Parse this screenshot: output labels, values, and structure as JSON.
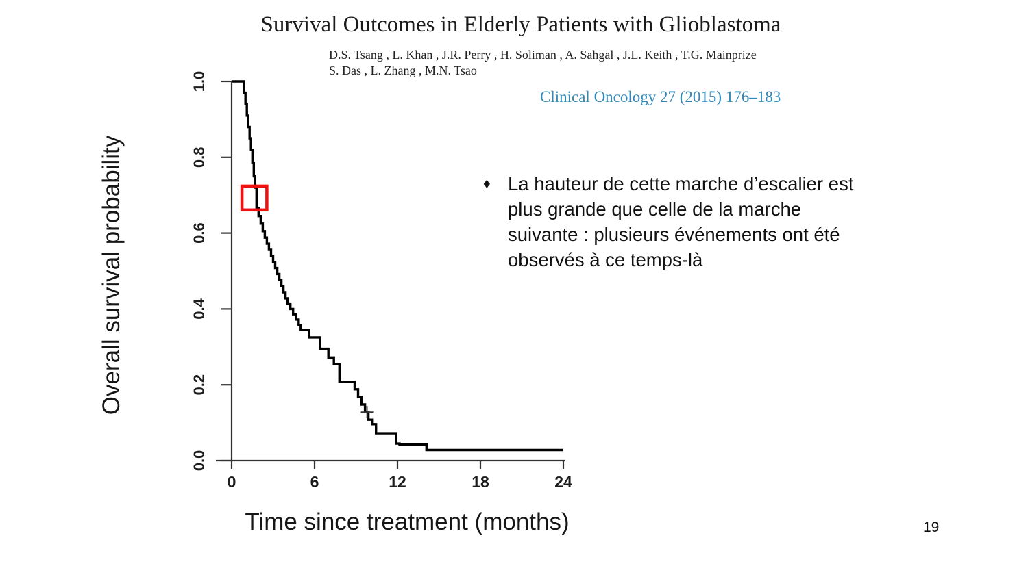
{
  "slide": {
    "title": "Survival Outcomes in Elderly Patients with Glioblastoma",
    "authors_line1": "D.S. Tsang , L. Khan , J.R. Perry , H. Soliman , A. Sahgal , J.L. Keith , T.G. Mainprize",
    "authors_line2": "S. Das , L. Zhang , M.N. Tsao",
    "citation": "Clinical Oncology 27 (2015) 176–183",
    "citation_color": "#3189b8",
    "bullet_marker": "♦",
    "bullet_text": "La hauteur de cette marche d’escalier est plus grande que celle de la marche suivante : plusieurs événements ont été observés à ce temps-là",
    "page_number": "19"
  },
  "chart_data": {
    "type": "line",
    "subtype": "kaplan-meier-step",
    "title": "",
    "xlabel": "Time since treatment (months)",
    "ylabel": "Overall survival probability",
    "xlim": [
      0,
      24
    ],
    "ylim": [
      0,
      1
    ],
    "xticks": [
      0,
      6,
      12,
      18,
      24
    ],
    "yticks": [
      0.0,
      0.2,
      0.4,
      0.6,
      0.8,
      1.0
    ],
    "grid": false,
    "legend": "none",
    "curve_color": "#000000",
    "axis_color": "#333333",
    "points": [
      [
        0,
        1.0
      ],
      [
        0.9,
        0.97
      ],
      [
        1.0,
        0.94
      ],
      [
        1.1,
        0.91
      ],
      [
        1.2,
        0.88
      ],
      [
        1.3,
        0.85
      ],
      [
        1.4,
        0.82
      ],
      [
        1.5,
        0.785
      ],
      [
        1.6,
        0.75
      ],
      [
        1.7,
        0.72
      ],
      [
        1.8,
        0.665
      ],
      [
        1.95,
        0.645
      ],
      [
        2.1,
        0.625
      ],
      [
        2.25,
        0.605
      ],
      [
        2.4,
        0.588
      ],
      [
        2.55,
        0.572
      ],
      [
        2.7,
        0.556
      ],
      [
        2.85,
        0.54
      ],
      [
        3.0,
        0.524
      ],
      [
        3.15,
        0.508
      ],
      [
        3.3,
        0.492
      ],
      [
        3.45,
        0.476
      ],
      [
        3.6,
        0.46
      ],
      [
        3.75,
        0.444
      ],
      [
        3.9,
        0.428
      ],
      [
        4.05,
        0.414
      ],
      [
        4.25,
        0.4
      ],
      [
        4.45,
        0.386
      ],
      [
        4.65,
        0.372
      ],
      [
        4.85,
        0.358
      ],
      [
        5.0,
        0.345
      ],
      [
        5.6,
        0.325
      ],
      [
        6.4,
        0.295
      ],
      [
        7.0,
        0.272
      ],
      [
        7.4,
        0.254
      ],
      [
        7.8,
        0.208
      ],
      [
        8.9,
        0.188
      ],
      [
        9.15,
        0.168
      ],
      [
        9.4,
        0.148
      ],
      [
        9.65,
        0.128
      ],
      [
        9.9,
        0.108
      ],
      [
        10.15,
        0.096
      ],
      [
        10.45,
        0.072
      ],
      [
        11.9,
        0.045
      ],
      [
        12.15,
        0.042
      ],
      [
        14.1,
        0.028
      ],
      [
        24,
        0.028
      ]
    ],
    "censor_marks": [
      {
        "t": 9.8,
        "s": 0.128
      }
    ],
    "annotation": {
      "type": "rect",
      "color": "#ee1111",
      "t0": 0.75,
      "t1": 2.55,
      "s0": 0.661,
      "s1": 0.724,
      "meaning": "highlighted large step of the survival staircase"
    }
  }
}
